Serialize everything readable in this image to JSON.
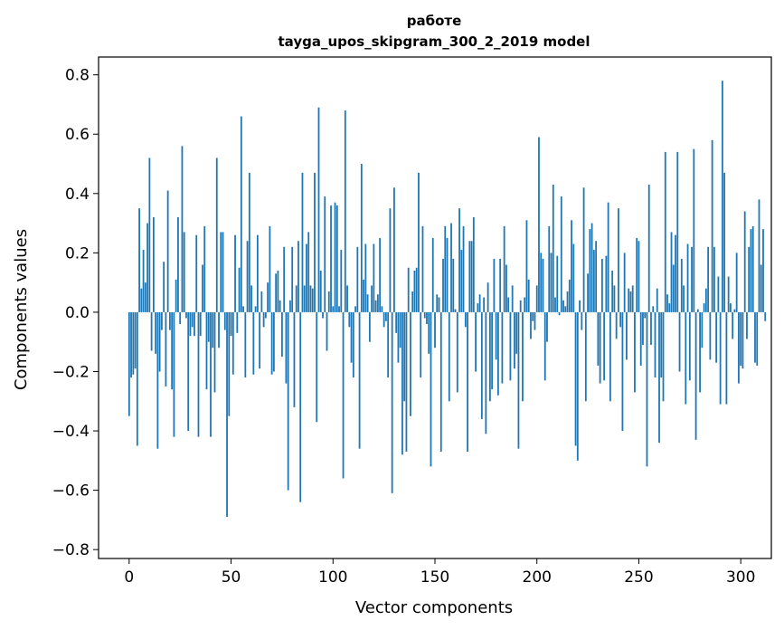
{
  "chart_data": {
    "type": "bar",
    "title_line1": "работе",
    "title_line2": "tayga_upos_skipgram_300_2_2019 model",
    "xlabel": "Vector components",
    "ylabel": "Components values",
    "xlim": [
      -15,
      315
    ],
    "ylim": [
      -0.83,
      0.86
    ],
    "xticks": [
      0,
      50,
      100,
      150,
      200,
      250,
      300
    ],
    "yticks": [
      -0.8,
      -0.6,
      -0.4,
      -0.2,
      0.0,
      0.2,
      0.4,
      0.6,
      0.8
    ],
    "ytick_labels": [
      "−0.8",
      "−0.6",
      "−0.4",
      "−0.2",
      "0.0",
      "0.2",
      "0.4",
      "0.6",
      "0.8"
    ],
    "xtick_labels": [
      "0",
      "50",
      "100",
      "150",
      "200",
      "250",
      "300"
    ],
    "bar_color": "#1f77b4",
    "values": [
      -0.35,
      -0.22,
      -0.21,
      -0.19,
      -0.45,
      0.35,
      0.08,
      0.21,
      0.1,
      0.3,
      0.52,
      -0.13,
      0.32,
      -0.14,
      -0.46,
      -0.2,
      -0.06,
      0.17,
      -0.25,
      0.41,
      -0.06,
      -0.26,
      -0.42,
      0.11,
      0.32,
      -0.04,
      0.56,
      0.27,
      -0.02,
      -0.4,
      -0.08,
      -0.05,
      -0.08,
      0.26,
      -0.42,
      -0.08,
      0.16,
      0.29,
      -0.26,
      -0.1,
      -0.42,
      -0.12,
      -0.27,
      0.52,
      -0.12,
      0.27,
      0.27,
      -0.06,
      -0.69,
      -0.35,
      -0.08,
      -0.21,
      0.26,
      -0.07,
      0.15,
      0.66,
      0.02,
      -0.22,
      0.24,
      0.47,
      0.09,
      -0.21,
      0.02,
      0.26,
      -0.19,
      0.07,
      -0.05,
      -0.02,
      0.1,
      0.29,
      -0.21,
      -0.2,
      0.13,
      0.14,
      0.04,
      -0.15,
      0.22,
      -0.24,
      -0.6,
      0.04,
      0.22,
      -0.32,
      0.09,
      0.24,
      -0.64,
      0.47,
      0.09,
      0.23,
      0.27,
      0.09,
      0.08,
      0.47,
      -0.37,
      0.69,
      0.14,
      -0.02,
      0.39,
      -0.13,
      0.07,
      0.36,
      0.02,
      0.37,
      0.36,
      0.02,
      0.21,
      -0.56,
      0.68,
      0.09,
      -0.05,
      -0.17,
      -0.22,
      0.02,
      0.22,
      -0.46,
      0.5,
      0.11,
      0.23,
      0.06,
      -0.1,
      0.09,
      0.23,
      0.04,
      0.06,
      0.25,
      0.02,
      -0.05,
      -0.03,
      -0.22,
      0.35,
      -0.61,
      0.42,
      -0.07,
      -0.17,
      -0.12,
      -0.48,
      -0.3,
      -0.47,
      0.15,
      -0.35,
      0.07,
      0.14,
      0.15,
      0.47,
      -0.22,
      0.29,
      -0.02,
      -0.04,
      -0.14,
      -0.52,
      0.25,
      -0.12,
      0.06,
      0.05,
      -0.47,
      0.18,
      0.29,
      0.25,
      -0.3,
      0.3,
      0.18,
      0.01,
      -0.27,
      0.35,
      0.21,
      0.29,
      -0.05,
      -0.47,
      0.24,
      0.24,
      0.32,
      -0.2,
      0.03,
      0.06,
      -0.36,
      0.05,
      -0.41,
      0.1,
      -0.3,
      -0.26,
      0.18,
      -0.16,
      -0.28,
      0.18,
      -0.24,
      0.29,
      0.16,
      0.05,
      -0.23,
      0.09,
      -0.19,
      -0.14,
      -0.46,
      0.04,
      -0.3,
      0.05,
      0.31,
      0.11,
      -0.09,
      -0.03,
      -0.06,
      0.09,
      0.59,
      0.2,
      0.18,
      -0.23,
      -0.1,
      0.29,
      0.2,
      0.43,
      0.05,
      0.19,
      -0.01,
      0.39,
      0.04,
      0.02,
      0.07,
      0.11,
      0.31,
      0.23,
      -0.45,
      -0.5,
      0.04,
      -0.06,
      0.42,
      -0.3,
      0.13,
      0.28,
      0.3,
      0.21,
      0.24,
      -0.18,
      -0.24,
      0.18,
      -0.23,
      0.19,
      0.37,
      -0.3,
      0.14,
      0.09,
      -0.09,
      0.35,
      -0.05,
      -0.4,
      0.2,
      -0.16,
      0.08,
      0.07,
      0.09,
      -0.27,
      0.25,
      0.24,
      -0.18,
      -0.11,
      -0.02,
      -0.52,
      0.43,
      -0.11,
      0.02,
      -0.22,
      0.08,
      -0.44,
      -0.22,
      -0.3,
      0.54,
      0.06,
      0.03,
      0.27,
      0.16,
      0.26,
      0.54,
      -0.2,
      0.18,
      0.09,
      -0.31,
      0.23,
      -0.23,
      0.22,
      0.55,
      -0.43,
      0.01,
      -0.27,
      -0.12,
      0.03,
      0.08,
      0.22,
      -0.16,
      0.58,
      0.22,
      -0.17,
      0.12,
      -0.31,
      0.78,
      0.47,
      -0.31,
      0.12,
      0.03,
      -0.09,
      0.01,
      0.2,
      -0.24,
      -0.18,
      -0.19,
      0.34,
      -0.09,
      0.22,
      0.28,
      0.29,
      -0.17,
      -0.18,
      0.38,
      0.16,
      0.28,
      -0.03
    ]
  }
}
